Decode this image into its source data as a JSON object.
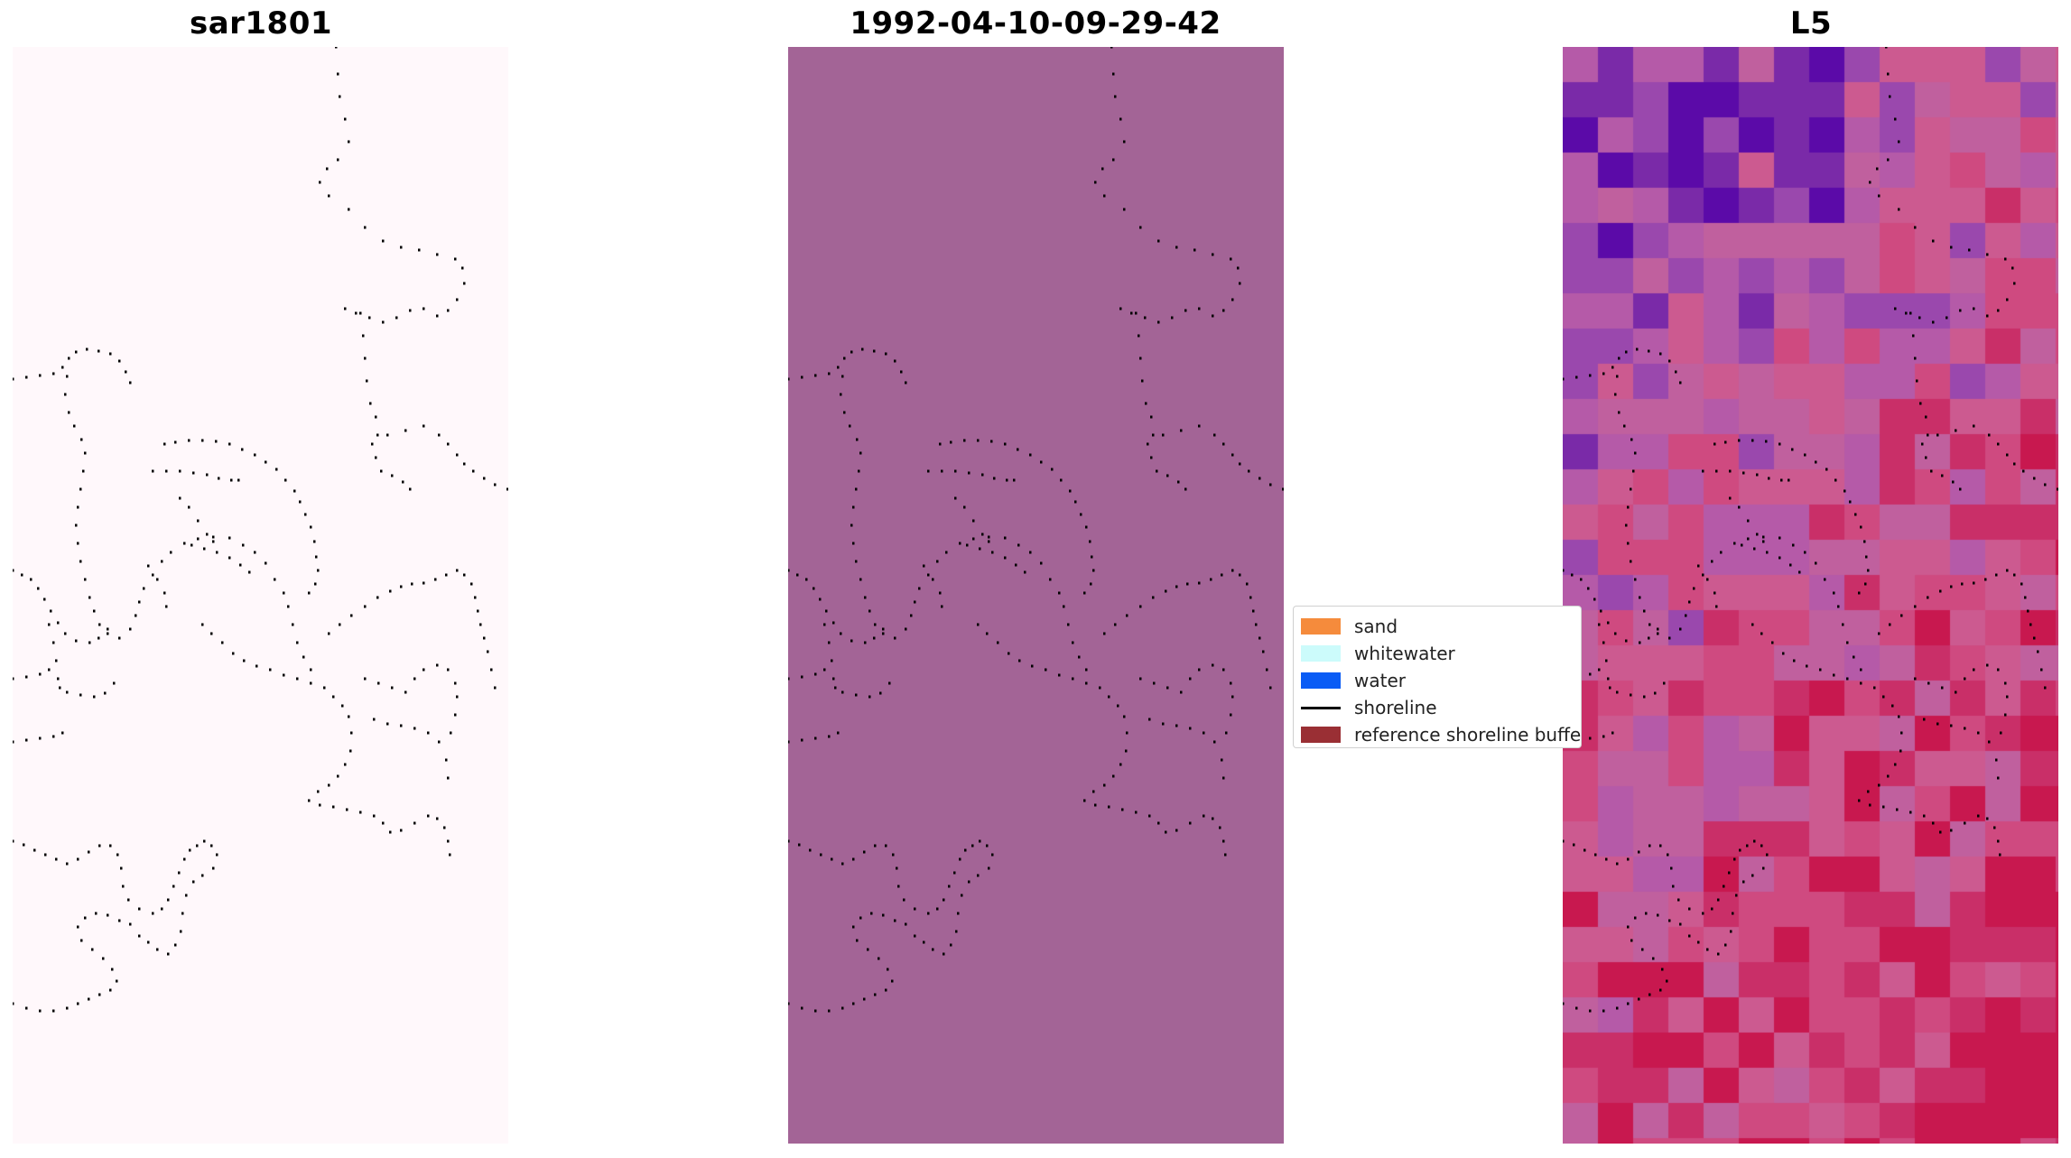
{
  "panels": [
    {
      "title": "sar1801",
      "background": "#fff8fb"
    },
    {
      "title": "1992-04-10-09-29-42",
      "background": "#a36496"
    },
    {
      "title": "L5",
      "background": "mosaic"
    }
  ],
  "legend": {
    "items": [
      {
        "label": "sand",
        "color": "#f58b3c",
        "kind": "patch"
      },
      {
        "label": "whitewater",
        "color": "#ccfbfb",
        "kind": "patch"
      },
      {
        "label": "water",
        "color": "#0a5cf5",
        "kind": "patch"
      },
      {
        "label": "shoreline",
        "color": "#000000",
        "kind": "line"
      },
      {
        "label": "reference shoreline buffer",
        "color": "#9a2f34",
        "kind": "patch"
      }
    ]
  },
  "mosaic_colors": [
    "#5b0aa8",
    "#7a2aa8",
    "#9a48ad",
    "#b55aa8",
    "#c0609e",
    "#cc5a90",
    "#cf4a80",
    "#c92f68",
    "#c8184f"
  ]
}
